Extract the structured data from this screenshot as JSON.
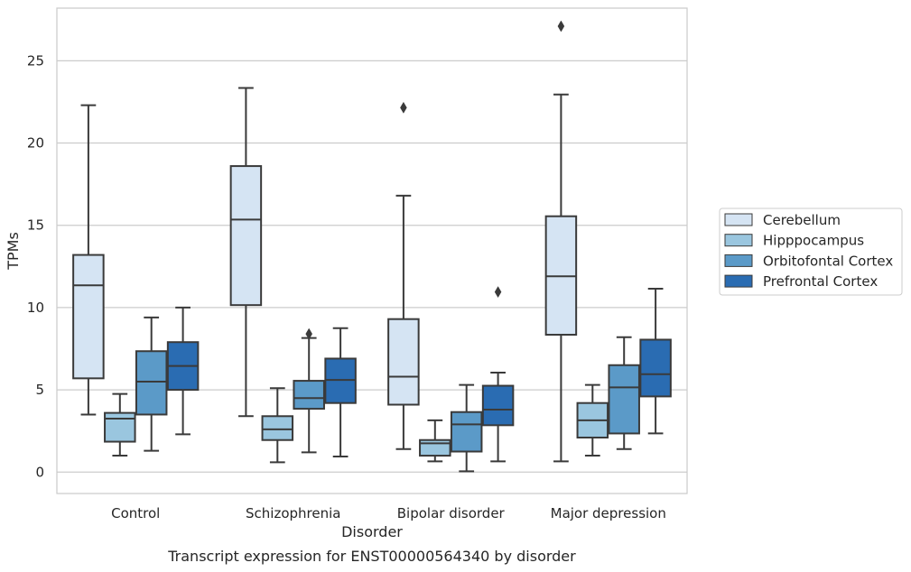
{
  "chart_data": {
    "type": "box",
    "title": "Transcript expression for ENST00000564340 by disorder",
    "xlabel": "Disorder",
    "ylabel": "TPMs",
    "ylim": [
      -1.3,
      28.2
    ],
    "yticks": [
      0,
      5,
      10,
      15,
      20,
      25
    ],
    "grid": "horizontal",
    "legend_position": "outside-right",
    "categories": [
      "Control",
      "Schizophrenia",
      "Bipolar disorder",
      "Major depression"
    ],
    "series": [
      {
        "name": "Cerebellum",
        "color": "#d5e4f3",
        "boxes": [
          {
            "whislo": 3.5,
            "q1": 5.7,
            "med": 11.35,
            "q3": 13.2,
            "whishi": 22.3,
            "fliers": []
          },
          {
            "whislo": 3.4,
            "q1": 10.15,
            "med": 15.35,
            "q3": 18.6,
            "whishi": 23.35,
            "fliers": []
          },
          {
            "whislo": 1.4,
            "q1": 4.1,
            "med": 5.8,
            "q3": 9.3,
            "whishi": 16.8,
            "fliers": [
              22.15
            ]
          },
          {
            "whislo": 0.65,
            "q1": 8.35,
            "med": 11.9,
            "q3": 15.55,
            "whishi": 22.95,
            "fliers": [
              27.1
            ]
          }
        ]
      },
      {
        "name": "Hipppocampus",
        "color": "#9ac6df",
        "boxes": [
          {
            "whislo": 1.0,
            "q1": 1.85,
            "med": 3.25,
            "q3": 3.6,
            "whishi": 4.75,
            "fliers": []
          },
          {
            "whislo": 0.6,
            "q1": 1.95,
            "med": 2.6,
            "q3": 3.4,
            "whishi": 5.1,
            "fliers": []
          },
          {
            "whislo": 0.65,
            "q1": 1.0,
            "med": 1.75,
            "q3": 1.95,
            "whishi": 3.15,
            "fliers": []
          },
          {
            "whislo": 1.0,
            "q1": 2.1,
            "med": 3.15,
            "q3": 4.2,
            "whishi": 5.3,
            "fliers": []
          }
        ]
      },
      {
        "name": "Orbitofontal Cortex",
        "color": "#5b9ac8",
        "boxes": [
          {
            "whislo": 1.3,
            "q1": 3.5,
            "med": 5.5,
            "q3": 7.35,
            "whishi": 9.4,
            "fliers": []
          },
          {
            "whislo": 1.2,
            "q1": 3.85,
            "med": 4.5,
            "q3": 5.55,
            "whishi": 8.15,
            "fliers": [
              8.4
            ]
          },
          {
            "whislo": 0.05,
            "q1": 1.25,
            "med": 2.9,
            "q3": 3.65,
            "whishi": 5.3,
            "fliers": []
          },
          {
            "whislo": 1.4,
            "q1": 2.35,
            "med": 5.15,
            "q3": 6.5,
            "whishi": 8.2,
            "fliers": []
          }
        ]
      },
      {
        "name": "Prefrontal Cortex",
        "color": "#2a6cb2",
        "boxes": [
          {
            "whislo": 2.3,
            "q1": 5.0,
            "med": 6.45,
            "q3": 7.9,
            "whishi": 10.0,
            "fliers": []
          },
          {
            "whislo": 0.95,
            "q1": 4.2,
            "med": 5.6,
            "q3": 6.9,
            "whishi": 8.75,
            "fliers": []
          },
          {
            "whislo": 0.65,
            "q1": 2.85,
            "med": 3.8,
            "q3": 5.25,
            "whishi": 6.05,
            "fliers": [
              10.95
            ]
          },
          {
            "whislo": 2.35,
            "q1": 4.6,
            "med": 5.95,
            "q3": 8.05,
            "whishi": 11.15,
            "fliers": []
          }
        ]
      }
    ]
  }
}
